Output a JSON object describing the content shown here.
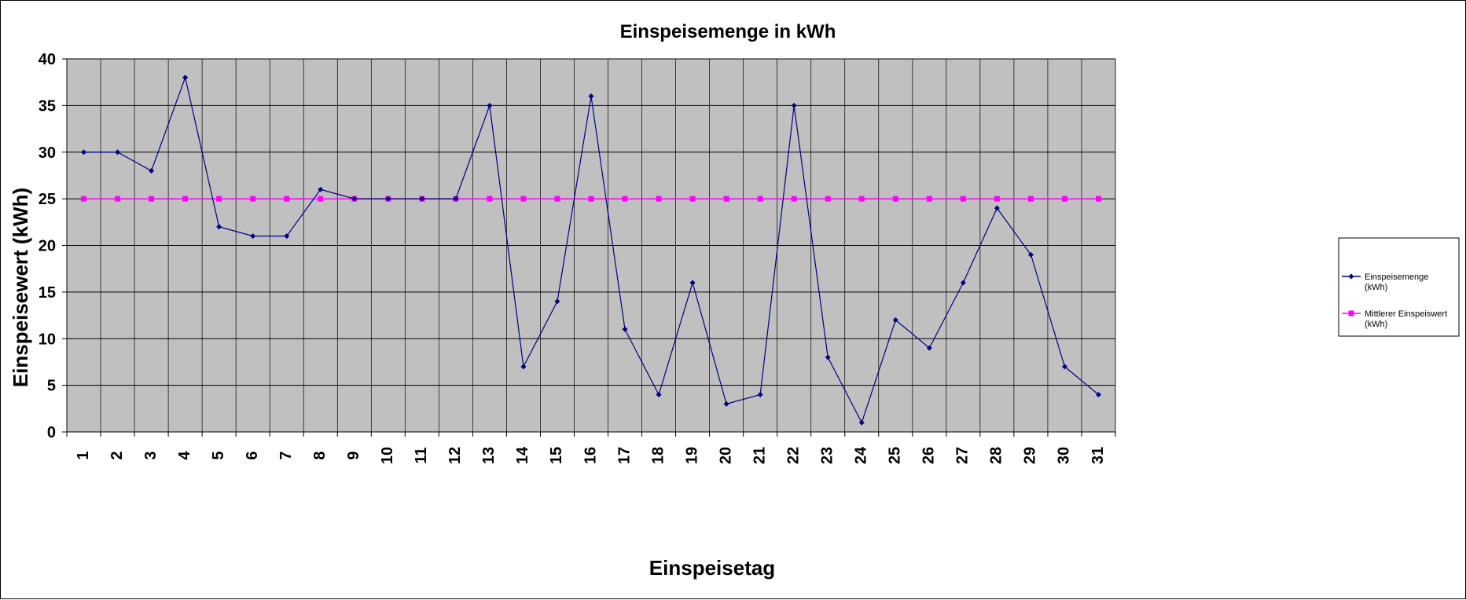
{
  "chart_data": {
    "type": "line",
    "title": "Einspeisemenge in kWh",
    "xlabel": "Einspeisetag",
    "ylabel": "Einspeisewert  (kWh)",
    "categories": [
      "1",
      "2",
      "3",
      "4",
      "5",
      "6",
      "7",
      "8",
      "9",
      "10",
      "11",
      "12",
      "13",
      "14",
      "15",
      "16",
      "17",
      "18",
      "19",
      "20",
      "21",
      "22",
      "23",
      "24",
      "25",
      "26",
      "27",
      "28",
      "29",
      "30",
      "31"
    ],
    "ylim": [
      0,
      40
    ],
    "yticks": [
      0,
      5,
      10,
      15,
      20,
      25,
      30,
      35,
      40
    ],
    "grid": true,
    "plot_background": "#c0c0c0",
    "legend_position": "right",
    "series": [
      {
        "name": "Einspeisemenge (kWh)",
        "legend_lines": [
          "Einspeisemenge",
          "(kWh)"
        ],
        "color": "#000080",
        "marker": "diamond",
        "values": [
          30,
          30,
          28,
          38,
          22,
          21,
          21,
          26,
          25,
          25,
          25,
          25,
          35,
          7,
          14,
          36,
          11,
          4,
          16,
          3,
          4,
          35,
          8,
          1,
          12,
          9,
          16,
          24,
          19,
          7,
          4
        ]
      },
      {
        "name": "Mittlerer Einspeiswert (kWh)",
        "legend_lines": [
          "Mittlerer Einspeiswert",
          "(kWh)"
        ],
        "color": "#ff00ff",
        "marker": "square",
        "values": [
          25,
          25,
          25,
          25,
          25,
          25,
          25,
          25,
          25,
          25,
          25,
          25,
          25,
          25,
          25,
          25,
          25,
          25,
          25,
          25,
          25,
          25,
          25,
          25,
          25,
          25,
          25,
          25,
          25,
          25,
          25
        ]
      }
    ]
  }
}
